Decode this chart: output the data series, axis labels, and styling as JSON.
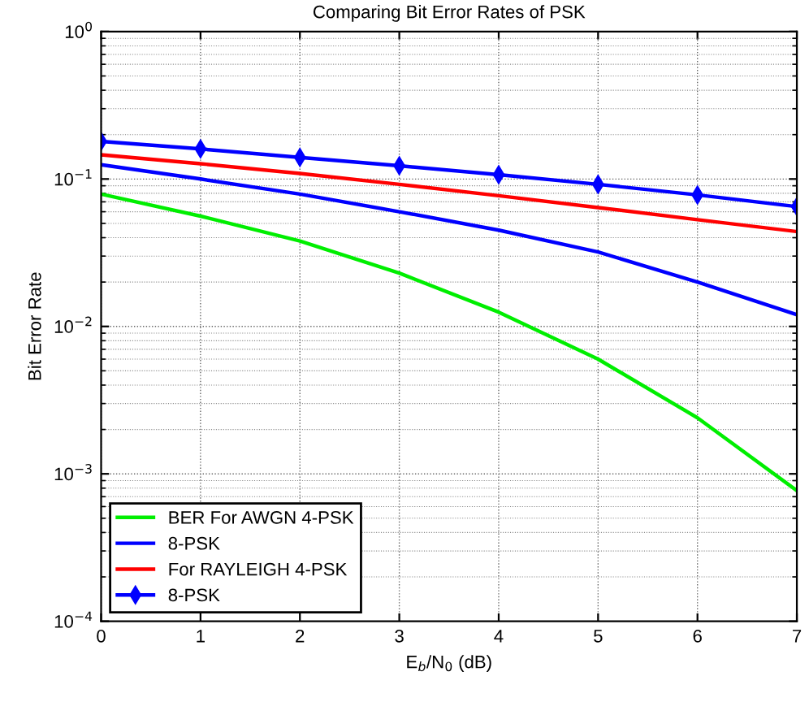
{
  "chart_data": {
    "type": "line",
    "title": "Comparing Bit Error Rates of PSK",
    "xlabel": "E$_{b}$/N$_{0}$ (dB)",
    "ylabel": "Bit Error Rate",
    "x": [
      0,
      1,
      2,
      3,
      4,
      5,
      6,
      7
    ],
    "series": [
      {
        "name": "BER For AWGN 4-PSK",
        "color": "#00ee00",
        "values": [
          0.079,
          0.056,
          0.038,
          0.023,
          0.0125,
          0.006,
          0.0024,
          0.00077
        ]
      },
      {
        "name": "8-PSK",
        "color": "#0000ff",
        "values": [
          0.125,
          0.1,
          0.079,
          0.06,
          0.045,
          0.032,
          0.02,
          0.012
        ]
      },
      {
        "name": "For RAYLEIGH 4-PSK",
        "color": "#ff0000",
        "values": [
          0.146,
          0.127,
          0.109,
          0.092,
          0.077,
          0.064,
          0.053,
          0.044
        ]
      },
      {
        "name": "8-PSK",
        "color": "#0000ff",
        "marker": "diamond",
        "values": [
          0.18,
          0.16,
          0.14,
          0.123,
          0.107,
          0.092,
          0.078,
          0.065
        ]
      }
    ],
    "log": "y",
    "xlim": [
      0,
      7
    ],
    "xticks": [
      0,
      1,
      2,
      3,
      4,
      5,
      6,
      7
    ],
    "ylim": [
      0.0001,
      1
    ],
    "yticks": [
      {
        "value": 0.0001,
        "label": "10$^{−4}$"
      },
      {
        "value": 0.001,
        "label": "10$^{−3}$"
      },
      {
        "value": 0.01,
        "label": "10$^{−2}$"
      },
      {
        "value": 0.1,
        "label": "10$^{−1}$"
      },
      {
        "value": 1,
        "label": "10$^{0}$"
      }
    ],
    "grid": true,
    "legend": "bottom left"
  }
}
